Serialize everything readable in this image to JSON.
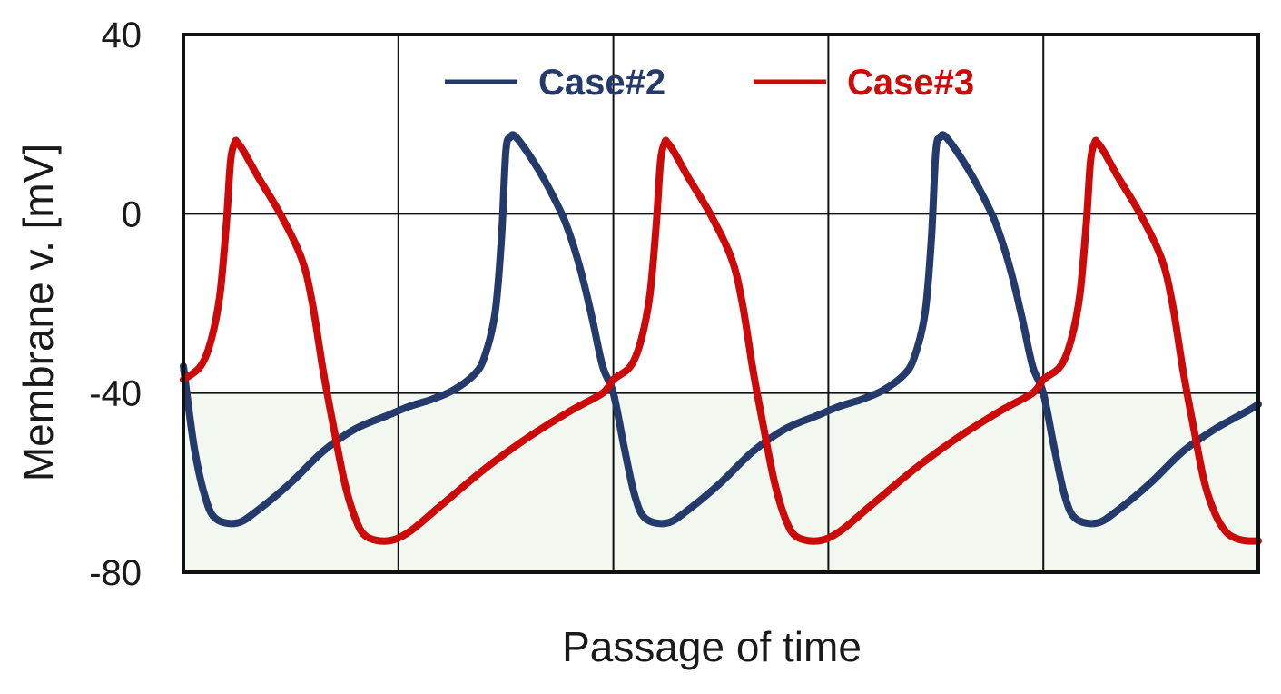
{
  "chart_data": {
    "type": "line",
    "title": "",
    "xlabel": "Passage of time",
    "ylabel": "Membrane v. [mV]",
    "ylim": [
      -80,
      40
    ],
    "xlim": [
      0,
      5
    ],
    "y_ticks": [
      "40",
      "0",
      "-40",
      "-80"
    ],
    "y_tick_values": [
      40,
      0,
      -40,
      -80
    ],
    "x_gridlines": [
      1,
      2,
      3,
      4
    ],
    "grid": true,
    "shaded_band": {
      "from": -80,
      "to": -40,
      "color": "#f2f7ef"
    },
    "legend": {
      "placement": "top",
      "entries": [
        "Case#2",
        "Case#3"
      ]
    },
    "series": [
      {
        "name": "Case#2",
        "color": "#233a6b",
        "x": [
          0.0,
          0.05,
          0.1,
          0.15,
          0.25,
          0.35,
          0.5,
          0.65,
          0.8,
          0.95,
          1.05,
          1.15,
          1.25,
          1.35,
          1.4,
          1.45,
          1.48,
          1.5,
          1.52,
          1.55,
          1.65,
          1.75,
          1.8,
          1.85,
          1.9,
          1.95,
          2.0,
          2.05,
          2.1,
          2.15,
          2.25,
          2.35,
          2.5,
          2.65,
          2.8,
          2.95,
          3.05,
          3.15,
          3.25,
          3.35,
          3.4,
          3.45,
          3.48,
          3.5,
          3.52,
          3.55,
          3.65,
          3.75,
          3.8,
          3.85,
          3.9,
          3.95,
          4.0,
          4.05,
          4.1,
          4.15,
          4.25,
          4.35,
          4.5,
          4.65,
          4.8,
          4.95,
          5.0
        ],
        "values": [
          -34,
          -52,
          -63,
          -68,
          -69,
          -66,
          -60,
          -53,
          -48,
          -45,
          -43,
          -41.5,
          -39.5,
          -36,
          -32,
          -22,
          -5,
          14,
          17,
          17,
          10,
          1,
          -5,
          -13,
          -23,
          -34,
          -40,
          -52,
          -63,
          -68,
          -69,
          -66,
          -60,
          -53,
          -48,
          -45,
          -43,
          -41.5,
          -39.5,
          -36,
          -32,
          -22,
          -5,
          14,
          17,
          17,
          10,
          1,
          -5,
          -13,
          -23,
          -34,
          -40,
          -52,
          -63,
          -68,
          -69,
          -66,
          -60,
          -53,
          -48,
          -44,
          -42.5
        ]
      },
      {
        "name": "Case#3",
        "color": "#cc0a0a",
        "x": [
          0.0,
          0.08,
          0.13,
          0.17,
          0.2,
          0.22,
          0.24,
          0.25,
          0.28,
          0.35,
          0.45,
          0.55,
          0.6,
          0.65,
          0.7,
          0.75,
          0.8,
          0.85,
          0.95,
          1.05,
          1.2,
          1.4,
          1.6,
          1.8,
          1.95,
          2.0,
          2.08,
          2.13,
          2.17,
          2.2,
          2.22,
          2.24,
          2.25,
          2.28,
          2.35,
          2.45,
          2.55,
          2.6,
          2.65,
          2.7,
          2.75,
          2.8,
          2.85,
          2.95,
          3.05,
          3.2,
          3.4,
          3.6,
          3.8,
          3.95,
          4.0,
          4.08,
          4.13,
          4.17,
          4.2,
          4.22,
          4.24,
          4.25,
          4.28,
          4.35,
          4.45,
          4.55,
          4.6,
          4.65,
          4.7,
          4.75,
          4.8,
          4.85,
          4.9,
          4.95,
          5.0
        ],
        "values": [
          -37,
          -34,
          -28,
          -18,
          -2,
          12,
          16,
          16,
          14,
          8,
          0,
          -10,
          -20,
          -35,
          -48,
          -60,
          -68,
          -72,
          -73,
          -71,
          -65,
          -57,
          -50,
          -44,
          -40,
          -37,
          -34,
          -28,
          -18,
          -2,
          12,
          16,
          16,
          14,
          8,
          0,
          -10,
          -20,
          -35,
          -48,
          -60,
          -68,
          -72,
          -73,
          -71,
          -65,
          -57,
          -50,
          -44,
          -40,
          -37,
          -34,
          -28,
          -18,
          -2,
          12,
          16,
          16,
          14,
          8,
          0,
          -10,
          -20,
          -35,
          -48,
          -60,
          -67,
          -71,
          -72.5,
          -73,
          -73
        ]
      }
    ]
  }
}
